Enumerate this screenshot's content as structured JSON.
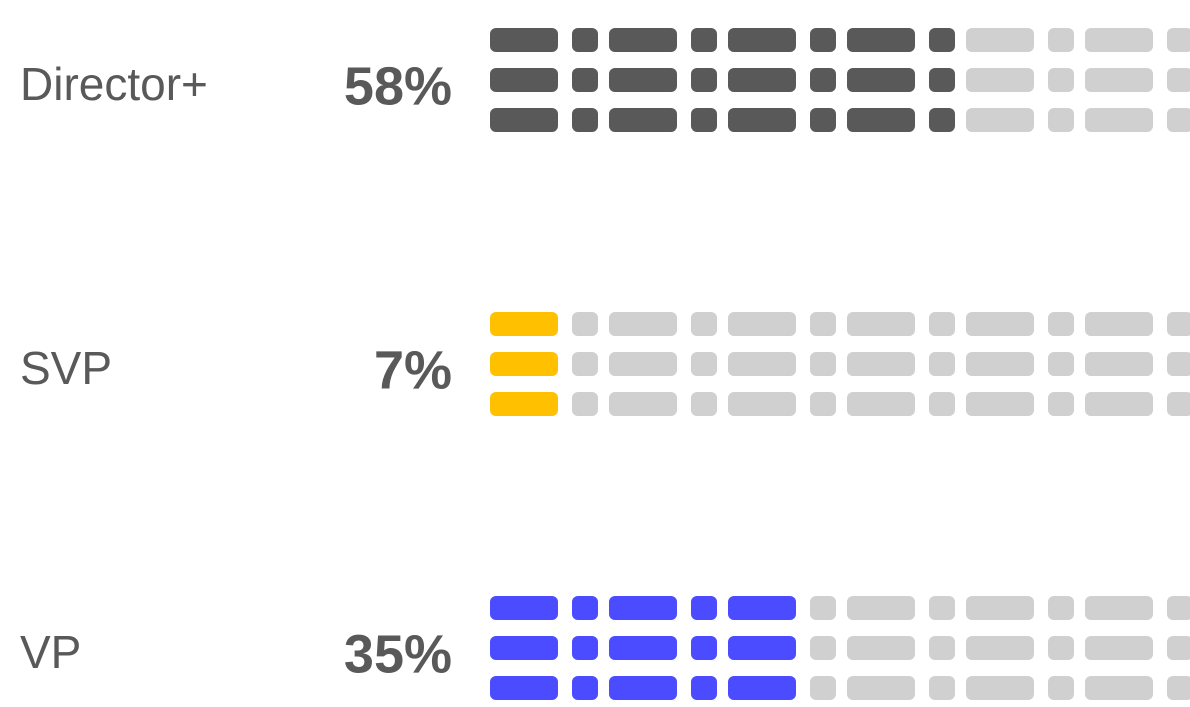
{
  "chart_data": {
    "type": "waffle",
    "categories": [
      "Director+",
      "SVP",
      "VP"
    ],
    "values": [
      58,
      7,
      35
    ],
    "value_labels": [
      "58%",
      "7%",
      "35%"
    ],
    "colors": [
      "#595959",
      "#ffc000",
      "#4b4bff"
    ],
    "empty_color": "#d0d0d0",
    "xlim": [
      0,
      100
    ]
  }
}
